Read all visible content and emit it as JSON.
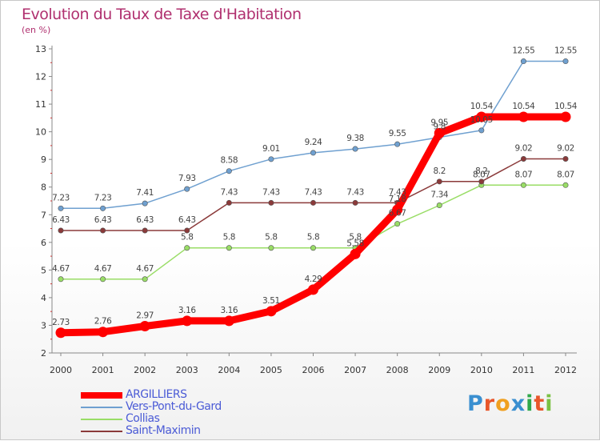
{
  "chart_data": {
    "type": "line",
    "title": "Evolution du Taux de Taxe d'Habitation",
    "unit_label": "(en %)",
    "x": [
      "2000",
      "2001",
      "2002",
      "2003",
      "2004",
      "2005",
      "2006",
      "2007",
      "2008",
      "2009",
      "2010",
      "2011",
      "2012"
    ],
    "yticks": [
      "2",
      "3",
      "4",
      "5",
      "6",
      "7",
      "8",
      "9",
      "10",
      "11",
      "12",
      "13"
    ],
    "ylim": [
      2,
      13
    ],
    "grid": false,
    "legend_position": "bottom-left",
    "series": [
      {
        "name": "ARGILLIERS",
        "color": "#ff0000",
        "values": [
          2.73,
          2.76,
          2.97,
          3.16,
          3.16,
          3.51,
          4.29,
          5.58,
          7.18,
          9.95,
          10.54,
          10.54,
          10.54
        ],
        "labels": [
          "2.73",
          "2.76",
          "2.97",
          "3.16",
          "3.16",
          "3.51",
          "4.29",
          "5.58",
          "7.18",
          "9.95",
          "10.54",
          "10.54",
          "10.54"
        ]
      },
      {
        "name": "Vers-Pont-du-Gard",
        "color": "#6fa0d0",
        "values": [
          7.23,
          7.23,
          7.41,
          7.93,
          8.58,
          9.01,
          9.24,
          9.38,
          9.55,
          9.8,
          10.05,
          12.55,
          12.55
        ],
        "labels": [
          "7.23",
          "7.23",
          "7.41",
          "7.93",
          "8.58",
          "9.01",
          "9.24",
          "9.38",
          "9.55",
          "9.8",
          "10.05",
          "12.55",
          "12.55"
        ]
      },
      {
        "name": "Collias",
        "color": "#99dd66",
        "values": [
          4.67,
          4.67,
          4.67,
          5.8,
          5.8,
          5.8,
          5.8,
          5.8,
          6.67,
          7.34,
          8.07,
          8.07,
          8.07
        ],
        "labels": [
          "4.67",
          "4.67",
          "4.67",
          "5.8",
          "5.8",
          "5.8",
          "5.8",
          "5.8",
          "6.67",
          "7.34",
          "8.07",
          "8.07",
          "8.07"
        ]
      },
      {
        "name": "Saint-Maximin",
        "color": "#8b3a3a",
        "values": [
          6.43,
          6.43,
          6.43,
          6.43,
          7.43,
          7.43,
          7.43,
          7.43,
          7.43,
          8.2,
          8.2,
          9.02,
          9.02
        ],
        "labels": [
          "6.43",
          "6.43",
          "6.43",
          "6.43",
          "7.43",
          "7.43",
          "7.43",
          "7.43",
          "7.43",
          "8.2",
          "8.2",
          "9.02",
          "9.02"
        ]
      }
    ]
  },
  "logo": {
    "text": "Proxiti",
    "letter_colors": [
      "#3a8fd0",
      "#e8562a",
      "#f0a020",
      "#3a8fd0",
      "#2fa84a",
      "#e8562a",
      "#7ac143"
    ]
  }
}
